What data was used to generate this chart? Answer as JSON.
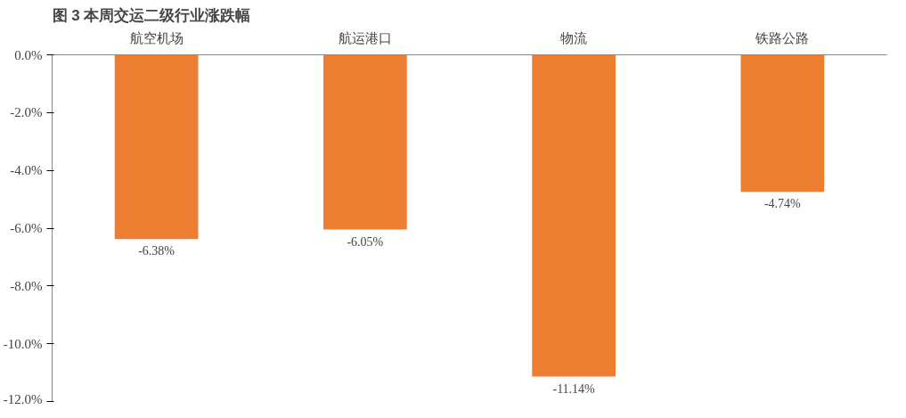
{
  "chart_data": {
    "type": "bar",
    "title": "图 3  本周交运二级行业涨跌幅",
    "categories": [
      "航空机场",
      "航运港口",
      "物流",
      "铁路公路"
    ],
    "values": [
      -6.38,
      -6.05,
      -11.14,
      -4.74
    ],
    "value_labels": [
      "-6.38%",
      "-6.05%",
      "-11.14%",
      "-4.74%"
    ],
    "color": "#ed7d31",
    "ylim": [
      -12,
      0
    ],
    "yticks": [
      {
        "value": 0,
        "label": "0.0%"
      },
      {
        "value": -2,
        "label": "-2.0%"
      },
      {
        "value": -4,
        "label": "-4.0%"
      },
      {
        "value": -6,
        "label": "-6.0%"
      },
      {
        "value": -8,
        "label": "-8.0%"
      },
      {
        "value": -10,
        "label": "-10.0%"
      },
      {
        "value": -12,
        "label": "-12.0%"
      }
    ],
    "grid": false
  }
}
